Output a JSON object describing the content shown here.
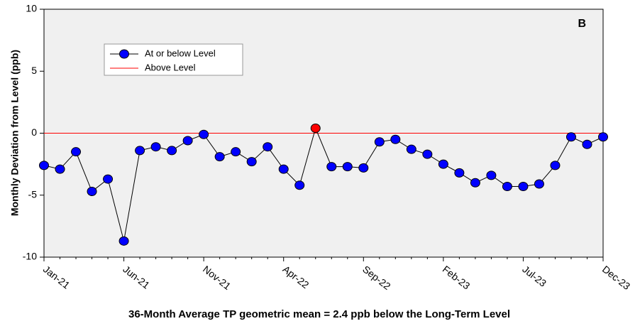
{
  "chart_data": {
    "type": "line",
    "ylabel": "Monthly Deviation from Level (ppb)",
    "caption": "36-Month Average TP geometric mean = 2.4 ppb below the Long-Term Level",
    "annotation": "B",
    "categories": [
      "Jan-21",
      null,
      null,
      null,
      null,
      "Jun-21",
      null,
      null,
      null,
      null,
      "Nov-21",
      null,
      null,
      null,
      null,
      "Apr-22",
      null,
      null,
      null,
      null,
      "Sep-22",
      null,
      null,
      null,
      null,
      "Feb-23",
      null,
      null,
      null,
      null,
      "Jul-23",
      null,
      null,
      null,
      null,
      "Dec-23"
    ],
    "series": [
      {
        "name": "At or below Level",
        "color": "#0000ff",
        "values": [
          -2.6,
          -2.9,
          -1.5,
          -4.7,
          -3.7,
          -8.7,
          -1.4,
          -1.1,
          -1.4,
          -0.6,
          -0.1,
          -1.9,
          -1.5,
          -2.3,
          -1.1,
          -2.9,
          -4.2,
          0.4,
          -2.7,
          -2.7,
          -2.8,
          -0.7,
          -0.5,
          -1.3,
          -1.7,
          -2.5,
          -3.2,
          -4.0,
          -3.4,
          -4.3,
          -4.3,
          -4.1,
          -2.6,
          -0.3,
          -0.9,
          -0.3
        ]
      }
    ],
    "threshold": {
      "name": "Above Level",
      "value": 0,
      "color": "#ff0000"
    },
    "ylim": [
      -10,
      10
    ],
    "yticks": [
      -10,
      -5,
      0,
      5,
      10
    ],
    "background": "#f0f0f0"
  }
}
